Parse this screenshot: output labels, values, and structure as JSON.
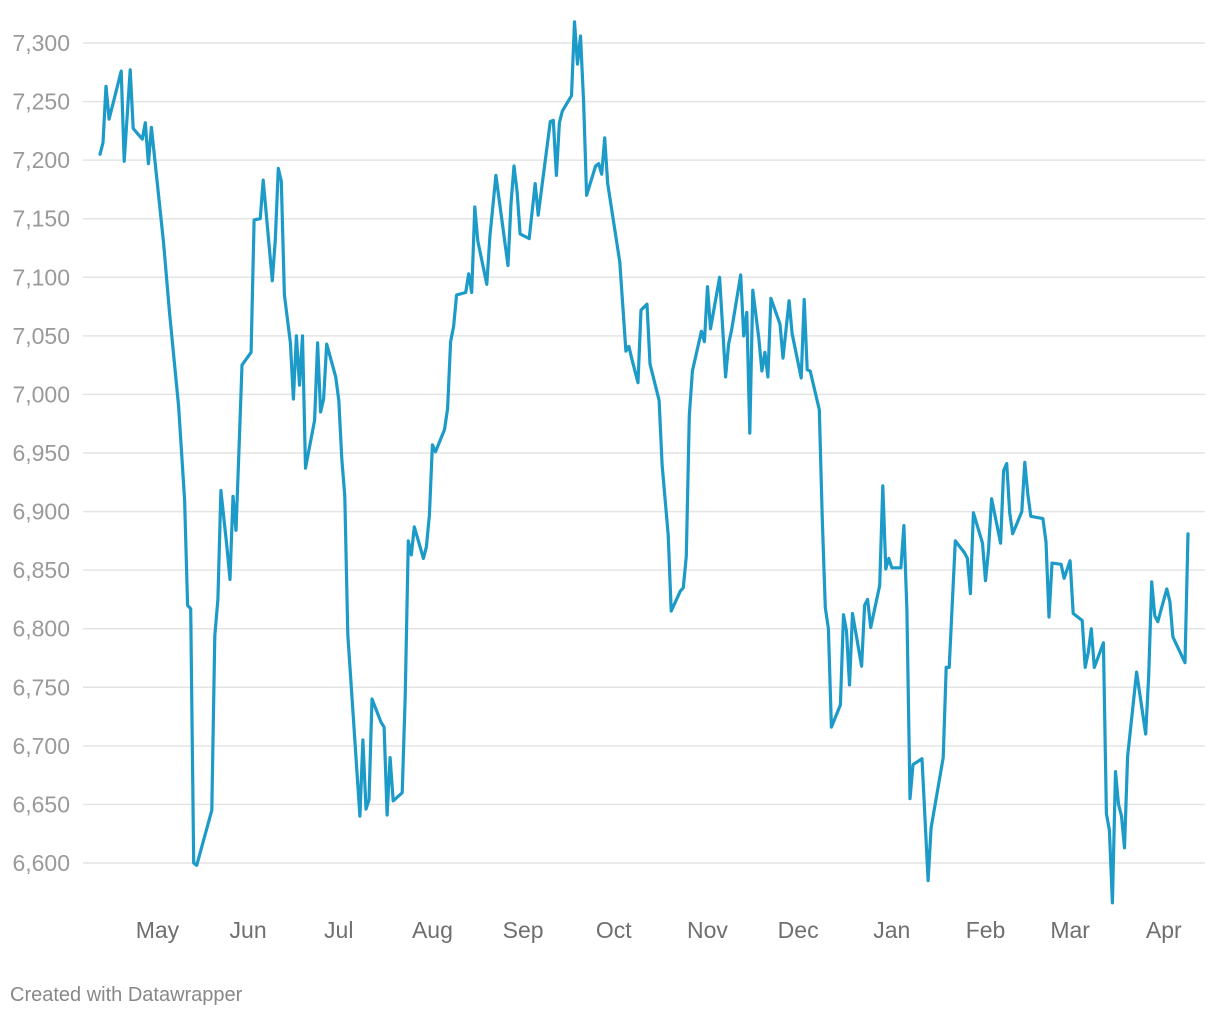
{
  "chart_data": {
    "type": "line",
    "title": "",
    "xlabel": "",
    "ylabel": "",
    "ylim": [
      6580,
      7320
    ],
    "y_ticks": [
      6600,
      6650,
      6700,
      6750,
      6800,
      6850,
      6900,
      6950,
      7000,
      7050,
      7100,
      7150,
      7200,
      7250,
      7300
    ],
    "x_ticks": [
      "May",
      "Jun",
      "Jul",
      "Aug",
      "Sep",
      "Oct",
      "Nov",
      "Dec",
      "Jan",
      "Feb",
      "Mar",
      "Apr"
    ],
    "x_range_days": [
      0,
      365
    ],
    "x_tick_days": [
      19,
      49,
      79,
      110,
      140,
      170,
      201,
      231,
      262,
      293,
      321,
      352
    ],
    "grid": true,
    "legend": "none",
    "colors": {
      "line": "#1d9bc8"
    },
    "series": [
      {
        "values": [
          [
            0,
            7205
          ],
          [
            1,
            7215
          ],
          [
            2,
            7263
          ],
          [
            3,
            7235
          ],
          [
            7,
            7276
          ],
          [
            8,
            7199
          ],
          [
            10,
            7277
          ],
          [
            11,
            7227
          ],
          [
            14,
            7218
          ],
          [
            15,
            7232
          ],
          [
            16,
            7197
          ],
          [
            17,
            7228
          ],
          [
            21,
            7130
          ],
          [
            23,
            7070
          ],
          [
            26,
            6990
          ],
          [
            28,
            6910
          ],
          [
            29,
            6820
          ],
          [
            30,
            6817
          ],
          [
            31,
            6600
          ],
          [
            32,
            6598
          ],
          [
            37,
            6645
          ],
          [
            38,
            6794
          ],
          [
            39,
            6825
          ],
          [
            40,
            6918
          ],
          [
            42,
            6870
          ],
          [
            43,
            6842
          ],
          [
            44,
            6913
          ],
          [
            45,
            6884
          ],
          [
            46,
            6953
          ],
          [
            47,
            7025
          ],
          [
            50,
            7036
          ],
          [
            51,
            7149
          ],
          [
            53,
            7150
          ],
          [
            54,
            7183
          ],
          [
            57,
            7097
          ],
          [
            58,
            7132
          ],
          [
            59,
            7193
          ],
          [
            60,
            7182
          ],
          [
            61,
            7085
          ],
          [
            63,
            7044
          ],
          [
            64,
            6996
          ],
          [
            65,
            7050
          ],
          [
            66,
            7008
          ],
          [
            67,
            7050
          ],
          [
            68,
            6937
          ],
          [
            71,
            6978
          ],
          [
            72,
            7044
          ],
          [
            73,
            6985
          ],
          [
            74,
            6996
          ],
          [
            75,
            7043
          ],
          [
            78,
            7015
          ],
          [
            79,
            6995
          ],
          [
            80,
            6945
          ],
          [
            81,
            6913
          ],
          [
            82,
            6795
          ],
          [
            86,
            6640
          ],
          [
            87,
            6705
          ],
          [
            88,
            6646
          ],
          [
            89,
            6654
          ],
          [
            90,
            6740
          ],
          [
            93,
            6720
          ],
          [
            94,
            6716
          ],
          [
            95,
            6641
          ],
          [
            96,
            6690
          ],
          [
            97,
            6653
          ],
          [
            100,
            6660
          ],
          [
            101,
            6742
          ],
          [
            102,
            6875
          ],
          [
            103,
            6863
          ],
          [
            104,
            6887
          ],
          [
            107,
            6860
          ],
          [
            108,
            6870
          ],
          [
            109,
            6897
          ],
          [
            110,
            6957
          ],
          [
            111,
            6951
          ],
          [
            114,
            6970
          ],
          [
            115,
            6988
          ],
          [
            116,
            7045
          ],
          [
            117,
            7058
          ],
          [
            118,
            7085
          ],
          [
            121,
            7087
          ],
          [
            122,
            7103
          ],
          [
            123,
            7087
          ],
          [
            124,
            7160
          ],
          [
            125,
            7131
          ],
          [
            128,
            7094
          ],
          [
            129,
            7135
          ],
          [
            131,
            7187
          ],
          [
            135,
            7110
          ],
          [
            136,
            7163
          ],
          [
            137,
            7195
          ],
          [
            138,
            7173
          ],
          [
            139,
            7137
          ],
          [
            142,
            7133
          ],
          [
            144,
            7180
          ],
          [
            145,
            7153
          ],
          [
            149,
            7233
          ],
          [
            150,
            7234
          ],
          [
            151,
            7187
          ],
          [
            152,
            7232
          ],
          [
            153,
            7242
          ],
          [
            156,
            7255
          ],
          [
            157,
            7318
          ],
          [
            158,
            7282
          ],
          [
            159,
            7306
          ],
          [
            160,
            7250
          ],
          [
            161,
            7170
          ],
          [
            164,
            7195
          ],
          [
            165,
            7197
          ],
          [
            166,
            7188
          ],
          [
            167,
            7219
          ],
          [
            168,
            7180
          ],
          [
            172,
            7113
          ],
          [
            174,
            7037
          ],
          [
            175,
            7041
          ],
          [
            176,
            7030
          ],
          [
            178,
            7010
          ],
          [
            179,
            7072
          ],
          [
            181,
            7077
          ],
          [
            182,
            7026
          ],
          [
            185,
            6995
          ],
          [
            186,
            6940
          ],
          [
            188,
            6880
          ],
          [
            189,
            6815
          ],
          [
            192,
            6832
          ],
          [
            193,
            6835
          ],
          [
            194,
            6862
          ],
          [
            195,
            6982
          ],
          [
            196,
            7020
          ],
          [
            199,
            7054
          ],
          [
            200,
            7045
          ],
          [
            201,
            7092
          ],
          [
            202,
            7056
          ],
          [
            205,
            7100
          ],
          [
            207,
            7015
          ],
          [
            208,
            7043
          ],
          [
            209,
            7055
          ],
          [
            212,
            7102
          ],
          [
            213,
            7050
          ],
          [
            214,
            7070
          ],
          [
            215,
            6967
          ],
          [
            216,
            7089
          ],
          [
            218,
            7048
          ],
          [
            219,
            7020
          ],
          [
            220,
            7036
          ],
          [
            221,
            7015
          ],
          [
            222,
            7082
          ],
          [
            225,
            7060
          ],
          [
            226,
            7031
          ],
          [
            228,
            7080
          ],
          [
            229,
            7052
          ],
          [
            232,
            7014
          ],
          [
            233,
            7081
          ],
          [
            234,
            7021
          ],
          [
            235,
            7020
          ],
          [
            238,
            6987
          ],
          [
            239,
            6893
          ],
          [
            240,
            6818
          ],
          [
            241,
            6800
          ],
          [
            242,
            6716
          ],
          [
            245,
            6735
          ],
          [
            246,
            6812
          ],
          [
            247,
            6798
          ],
          [
            248,
            6752
          ],
          [
            249,
            6813
          ],
          [
            252,
            6768
          ],
          [
            253,
            6820
          ],
          [
            254,
            6825
          ],
          [
            255,
            6801
          ],
          [
            258,
            6837
          ],
          [
            259,
            6922
          ],
          [
            260,
            6851
          ],
          [
            261,
            6860
          ],
          [
            262,
            6852
          ],
          [
            265,
            6852
          ],
          [
            266,
            6888
          ],
          [
            267,
            6816
          ],
          [
            268,
            6655
          ],
          [
            269,
            6684
          ],
          [
            272,
            6689
          ],
          [
            274,
            6585
          ],
          [
            275,
            6630
          ],
          [
            279,
            6690
          ],
          [
            280,
            6767
          ],
          [
            281,
            6767
          ],
          [
            283,
            6875
          ],
          [
            286,
            6865
          ],
          [
            287,
            6860
          ],
          [
            288,
            6830
          ],
          [
            289,
            6899
          ],
          [
            292,
            6873
          ],
          [
            293,
            6841
          ],
          [
            294,
            6867
          ],
          [
            295,
            6911
          ],
          [
            298,
            6873
          ],
          [
            299,
            6935
          ],
          [
            300,
            6941
          ],
          [
            301,
            6899
          ],
          [
            302,
            6881
          ],
          [
            305,
            6900
          ],
          [
            306,
            6942
          ],
          [
            307,
            6915
          ],
          [
            308,
            6896
          ],
          [
            312,
            6894
          ],
          [
            313,
            6874
          ],
          [
            314,
            6810
          ],
          [
            315,
            6856
          ],
          [
            318,
            6855
          ],
          [
            319,
            6843
          ],
          [
            321,
            6858
          ],
          [
            322,
            6813
          ],
          [
            325,
            6807
          ],
          [
            326,
            6767
          ],
          [
            327,
            6780
          ],
          [
            328,
            6800
          ],
          [
            329,
            6767
          ],
          [
            332,
            6788
          ],
          [
            333,
            6642
          ],
          [
            334,
            6628
          ],
          [
            335,
            6566
          ],
          [
            336,
            6678
          ],
          [
            337,
            6650
          ],
          [
            338,
            6640
          ],
          [
            339,
            6613
          ],
          [
            340,
            6691
          ],
          [
            343,
            6763
          ],
          [
            346,
            6710
          ],
          [
            347,
            6760
          ],
          [
            348,
            6840
          ],
          [
            349,
            6811
          ],
          [
            350,
            6806
          ],
          [
            353,
            6834
          ],
          [
            354,
            6823
          ],
          [
            355,
            6793
          ],
          [
            359,
            6771
          ],
          [
            360,
            6881
          ]
        ]
      }
    ]
  },
  "credit": "Created with Datawrapper"
}
